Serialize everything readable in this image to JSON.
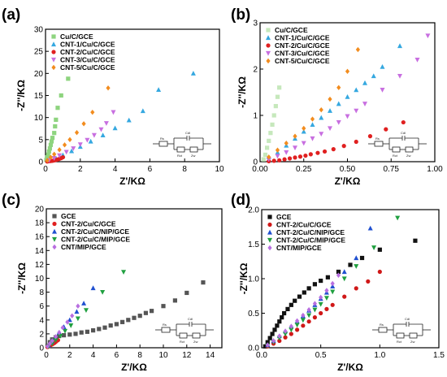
{
  "chart_data": [
    {
      "type": "scatter",
      "panel_label": "(a)",
      "xlabel": "Z'/KΩ",
      "ylabel": "-Z''/KΩ",
      "xlim": [
        0,
        10
      ],
      "ylim": [
        0,
        30
      ],
      "xticks": [
        "0",
        "2",
        "4",
        "6",
        "8",
        "10"
      ],
      "yticks": [
        "0",
        "5",
        "10",
        "15",
        "20",
        "25",
        "30"
      ],
      "legend_position": "top-left",
      "series": [
        {
          "name": "Cu/C/GCE",
          "color": "#8ed47f",
          "marker": "square",
          "x": [
            0.05,
            0.1,
            0.15,
            0.2,
            0.25,
            0.3,
            0.35,
            0.4,
            0.5,
            0.55,
            0.6,
            0.7,
            0.9,
            1.3
          ],
          "y": [
            0.4,
            1.0,
            1.6,
            2.3,
            3.0,
            3.8,
            4.6,
            5.4,
            6.5,
            8.0,
            9.5,
            12.2,
            15.0,
            18.8
          ]
        },
        {
          "name": "CNT-1/Cu/C/GCE",
          "color": "#35a8e0",
          "marker": "triangle",
          "x": [
            0.3,
            0.6,
            1.0,
            1.5,
            2.0,
            2.6,
            3.3,
            4.0,
            4.8,
            5.6,
            6.5,
            8.5
          ],
          "y": [
            0.3,
            0.8,
            1.5,
            2.4,
            3.4,
            4.6,
            6.0,
            7.6,
            9.4,
            11.5,
            16.3,
            20.0
          ]
        },
        {
          "name": "CNT-2/Cu/C/GCE",
          "color": "#e02020",
          "marker": "circle",
          "x": [
            0.1,
            0.2,
            0.3,
            0.4,
            0.5,
            0.6,
            0.7,
            0.8,
            0.9,
            1.0
          ],
          "y": [
            0.05,
            0.1,
            0.15,
            0.2,
            0.3,
            0.4,
            0.5,
            0.65,
            0.8,
            1.0
          ]
        },
        {
          "name": "CNT-3/Cu/C/GCE",
          "color": "#c86fe0",
          "marker": "triangle-down",
          "x": [
            0.2,
            0.5,
            0.8,
            1.2,
            1.6,
            2.0,
            2.4,
            2.8,
            3.2,
            3.5,
            3.9
          ],
          "y": [
            0.3,
            0.8,
            1.4,
            2.2,
            3.0,
            3.9,
            4.9,
            6.0,
            7.3,
            8.7,
            11.2
          ]
        },
        {
          "name": "CNT-5/Cu/C/GCE",
          "color": "#f28c1e",
          "marker": "diamond",
          "x": [
            0.1,
            0.3,
            0.5,
            0.8,
            1.1,
            1.4,
            1.8,
            2.2,
            2.7,
            3.6
          ],
          "y": [
            0.3,
            1.0,
            1.7,
            2.7,
            3.8,
            5.0,
            6.6,
            8.6,
            11.2,
            16.7
          ]
        }
      ]
    },
    {
      "type": "scatter",
      "panel_label": "(b)",
      "xlabel": "Z'/KΩ",
      "ylabel": "-Z''/KΩ",
      "xlim": [
        0,
        1.0
      ],
      "ylim": [
        0,
        3.0
      ],
      "xticks": [
        "0.00",
        "0.25",
        "0.50",
        "0.75",
        "1.00"
      ],
      "yticks": [
        "0",
        "1",
        "2",
        "3"
      ],
      "legend_position": "top-left",
      "series": [
        {
          "name": "Cu/C/GCE",
          "color": "#c6e8bc",
          "marker": "square",
          "x": [
            0.02,
            0.03,
            0.04,
            0.05,
            0.06,
            0.07,
            0.08,
            0.09,
            0.1,
            0.11
          ],
          "y": [
            0.05,
            0.15,
            0.3,
            0.45,
            0.62,
            0.8,
            1.0,
            1.2,
            1.4,
            1.6
          ]
        },
        {
          "name": "CNT-1/Cu/C/GCE",
          "color": "#35a8e0",
          "marker": "triangle",
          "x": [
            0.05,
            0.1,
            0.15,
            0.2,
            0.25,
            0.3,
            0.35,
            0.4,
            0.45,
            0.5,
            0.55,
            0.6,
            0.65,
            0.7,
            0.8
          ],
          "y": [
            0.1,
            0.2,
            0.35,
            0.5,
            0.65,
            0.8,
            0.95,
            1.1,
            1.25,
            1.4,
            1.55,
            1.7,
            1.85,
            2.05,
            2.5
          ]
        },
        {
          "name": "CNT-2/Cu/C/GCE",
          "color": "#e02020",
          "marker": "circle",
          "x": [
            0.05,
            0.08,
            0.11,
            0.14,
            0.17,
            0.2,
            0.23,
            0.26,
            0.29,
            0.33,
            0.37,
            0.42,
            0.48,
            0.55,
            0.63,
            0.72,
            0.82
          ],
          "y": [
            0.01,
            0.02,
            0.03,
            0.05,
            0.07,
            0.09,
            0.11,
            0.13,
            0.16,
            0.19,
            0.22,
            0.27,
            0.34,
            0.43,
            0.55,
            0.7,
            0.85
          ]
        },
        {
          "name": "CNT-3/Cu/C/GCE",
          "color": "#c86fe0",
          "marker": "triangle-down",
          "x": [
            0.05,
            0.1,
            0.15,
            0.2,
            0.25,
            0.3,
            0.35,
            0.4,
            0.45,
            0.5,
            0.55,
            0.6,
            0.7,
            0.8,
            0.9,
            0.96
          ],
          "y": [
            0.05,
            0.12,
            0.2,
            0.3,
            0.4,
            0.5,
            0.6,
            0.72,
            0.85,
            0.98,
            1.1,
            1.25,
            1.55,
            1.85,
            2.2,
            2.72
          ]
        },
        {
          "name": "CNT-5/Cu/C/GCE",
          "color": "#f28c1e",
          "marker": "diamond",
          "x": [
            0.05,
            0.1,
            0.15,
            0.2,
            0.25,
            0.3,
            0.35,
            0.4,
            0.45,
            0.5,
            0.56
          ],
          "y": [
            0.1,
            0.25,
            0.4,
            0.55,
            0.72,
            0.92,
            1.12,
            1.35,
            1.6,
            1.95,
            2.42
          ]
        }
      ]
    },
    {
      "type": "scatter",
      "panel_label": "(c)",
      "xlabel": "Z'/KΩ",
      "ylabel": "-Z''/KΩ",
      "xlim": [
        0,
        15
      ],
      "ylim": [
        0,
        20
      ],
      "xticks": [
        "0",
        "2",
        "4",
        "6",
        "8",
        "10",
        "12",
        "14"
      ],
      "yticks": [
        "0",
        "2",
        "4",
        "6",
        "8",
        "10",
        "12",
        "14",
        "16",
        "18",
        "20"
      ],
      "legend_position": "top-left",
      "series": [
        {
          "name": "GCE",
          "color": "#555555",
          "marker": "square",
          "x": [
            0.1,
            0.3,
            0.5,
            0.8,
            1.1,
            1.5,
            2.0,
            2.5,
            3.0,
            3.5,
            4.0,
            4.5,
            5.0,
            5.5,
            6.0,
            6.5,
            7.0,
            7.5,
            8.0,
            8.5,
            9.0,
            10.0,
            11.0,
            12.0,
            13.4
          ],
          "y": [
            0.3,
            0.8,
            1.2,
            1.5,
            1.7,
            1.8,
            1.9,
            2.0,
            2.2,
            2.3,
            2.5,
            2.7,
            2.9,
            3.2,
            3.4,
            3.7,
            4.0,
            4.3,
            4.6,
            5.0,
            5.3,
            6.0,
            6.8,
            7.9,
            9.4
          ]
        },
        {
          "name": "CNT-2/Cu/C/GCE",
          "color": "#e02020",
          "marker": "circle",
          "x": [
            0.1,
            0.2,
            0.3,
            0.4,
            0.5,
            0.6,
            0.7,
            0.8,
            0.9,
            1.0
          ],
          "y": [
            0.1,
            0.2,
            0.3,
            0.4,
            0.5,
            0.6,
            0.7,
            0.85,
            1.0,
            1.1
          ]
        },
        {
          "name": "CNT-2/Cu/C/NIP/GCE",
          "color": "#2050d0",
          "marker": "triangle",
          "x": [
            0.2,
            0.5,
            0.8,
            1.1,
            1.5,
            2.0,
            2.6,
            3.2,
            4.0
          ],
          "y": [
            0.3,
            0.9,
            1.5,
            2.2,
            3.0,
            4.0,
            5.2,
            6.4,
            8.6
          ]
        },
        {
          "name": "CNT-2/Cu/C/MIP/GCE",
          "color": "#20a040",
          "marker": "triangle-down",
          "x": [
            0.2,
            0.5,
            0.8,
            1.2,
            1.6,
            2.1,
            2.7,
            3.4,
            4.8,
            6.6
          ],
          "y": [
            0.2,
            0.6,
            1.1,
            1.7,
            2.4,
            3.2,
            4.2,
            5.4,
            8.0,
            10.9
          ]
        },
        {
          "name": "CNT/MIP/GCE",
          "color": "#b86fe0",
          "marker": "diamond",
          "x": [
            0.1,
            0.3,
            0.5,
            0.8,
            1.1,
            1.4,
            1.8,
            2.2,
            2.7
          ],
          "y": [
            0.2,
            0.6,
            1.0,
            1.6,
            2.2,
            2.9,
            3.7,
            4.6,
            6.0
          ]
        }
      ]
    },
    {
      "type": "scatter",
      "panel_label": "(d)",
      "xlabel": "Z'/KΩ",
      "ylabel": "-Z''/KΩ",
      "xlim": [
        0,
        1.5
      ],
      "ylim": [
        0,
        2.0
      ],
      "xticks": [
        "0.0",
        "0.5",
        "1.0",
        "1.5"
      ],
      "yticks": [
        "0.0",
        "0.5",
        "1.0",
        "1.5",
        "2.0"
      ],
      "legend_position": "top-left",
      "series": [
        {
          "name": "GCE",
          "color": "#111111",
          "marker": "square",
          "x": [
            0.03,
            0.05,
            0.07,
            0.09,
            0.11,
            0.13,
            0.15,
            0.17,
            0.19,
            0.22,
            0.25,
            0.28,
            0.32,
            0.36,
            0.4,
            0.45,
            0.5,
            0.56,
            0.65,
            0.75,
            0.85,
            1.0,
            1.3
          ],
          "y": [
            0.02,
            0.08,
            0.14,
            0.2,
            0.26,
            0.32,
            0.38,
            0.44,
            0.5,
            0.56,
            0.62,
            0.68,
            0.74,
            0.8,
            0.86,
            0.92,
            0.97,
            1.02,
            1.1,
            1.2,
            1.3,
            1.42,
            1.55
          ]
        },
        {
          "name": "CNT-2/Cu/C/GCE",
          "color": "#d01818",
          "marker": "circle",
          "x": [
            0.05,
            0.1,
            0.15,
            0.2,
            0.25,
            0.3,
            0.35,
            0.4,
            0.45,
            0.5,
            0.55,
            0.6,
            0.7,
            0.8,
            0.9,
            1.0
          ],
          "y": [
            0.02,
            0.06,
            0.1,
            0.15,
            0.2,
            0.26,
            0.32,
            0.38,
            0.44,
            0.5,
            0.56,
            0.62,
            0.74,
            0.86,
            0.96,
            1.1
          ]
        },
        {
          "name": "CNT-2/Cu/C/NIP/GCE",
          "color": "#2050d0",
          "marker": "triangle",
          "x": [
            0.05,
            0.1,
            0.15,
            0.2,
            0.25,
            0.3,
            0.35,
            0.4,
            0.45,
            0.5,
            0.55,
            0.6,
            0.7,
            0.8,
            0.92
          ],
          "y": [
            0.04,
            0.1,
            0.17,
            0.24,
            0.31,
            0.38,
            0.46,
            0.54,
            0.62,
            0.71,
            0.8,
            0.89,
            1.1,
            1.3,
            1.73
          ]
        },
        {
          "name": "CNT-2/Cu/C/MIP/GCE",
          "color": "#20a040",
          "marker": "triangle-down",
          "x": [
            0.05,
            0.1,
            0.15,
            0.2,
            0.25,
            0.3,
            0.35,
            0.4,
            0.45,
            0.5,
            0.55,
            0.6,
            0.7,
            0.8,
            0.95,
            1.15
          ],
          "y": [
            0.03,
            0.08,
            0.14,
            0.2,
            0.26,
            0.33,
            0.4,
            0.47,
            0.55,
            0.63,
            0.72,
            0.81,
            1.0,
            1.18,
            1.45,
            1.88
          ]
        },
        {
          "name": "CNT/MIP/GCE",
          "color": "#b86fe0",
          "marker": "diamond",
          "x": [
            0.05,
            0.1,
            0.15,
            0.2,
            0.25,
            0.3,
            0.35,
            0.4,
            0.45,
            0.5,
            0.55,
            0.6,
            0.65
          ],
          "y": [
            0.04,
            0.1,
            0.17,
            0.24,
            0.31,
            0.39,
            0.47,
            0.55,
            0.64,
            0.73,
            0.83,
            0.93,
            1.05
          ]
        }
      ]
    }
  ],
  "circuit_labels": [
    "Rs",
    "Cdl",
    "Rct",
    "Zw"
  ]
}
